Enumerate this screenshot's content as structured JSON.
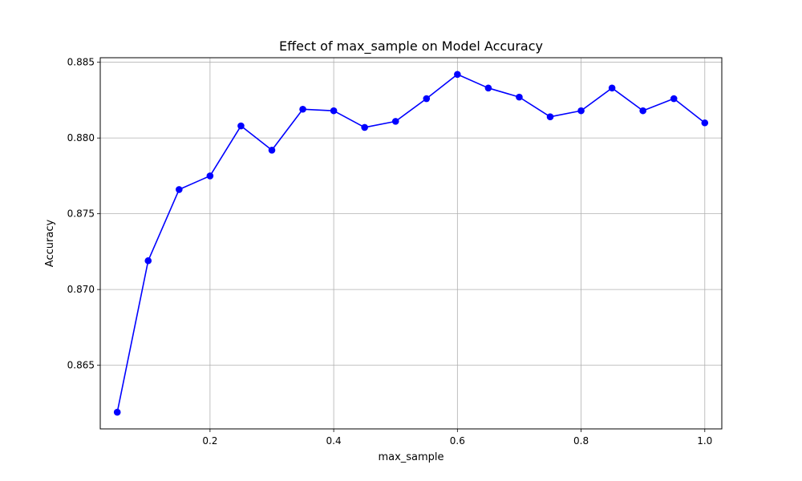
{
  "chart_data": {
    "type": "line",
    "title": "Effect of max_sample on Model Accuracy",
    "xlabel": "max_sample",
    "ylabel": "Accuracy",
    "xlim": [
      0.0225,
      1.0275
    ],
    "ylim": [
      0.8608,
      0.8853
    ],
    "x_ticks": [
      0.2,
      0.4,
      0.6,
      0.8,
      1.0
    ],
    "x_tick_labels": [
      "0.2",
      "0.4",
      "0.6",
      "0.8",
      "1.0"
    ],
    "y_ticks": [
      0.865,
      0.87,
      0.875,
      0.88,
      0.885
    ],
    "y_tick_labels": [
      "0.865",
      "0.870",
      "0.875",
      "0.880",
      "0.885"
    ],
    "grid": true,
    "color": "#0000ff",
    "marker": "circle",
    "series": [
      {
        "x": [
          0.05,
          0.1,
          0.15,
          0.2,
          0.25,
          0.3,
          0.35,
          0.4,
          0.45,
          0.5,
          0.55,
          0.6,
          0.65,
          0.7,
          0.75,
          0.8,
          0.85,
          0.9,
          0.95,
          1.0
        ],
        "y": [
          0.8619,
          0.8719,
          0.8766,
          0.8775,
          0.8808,
          0.8792,
          0.8819,
          0.8818,
          0.8807,
          0.8811,
          0.8826,
          0.8842,
          0.8833,
          0.8827,
          0.8814,
          0.8818,
          0.8833,
          0.8818,
          0.8826,
          0.881
        ]
      }
    ]
  }
}
